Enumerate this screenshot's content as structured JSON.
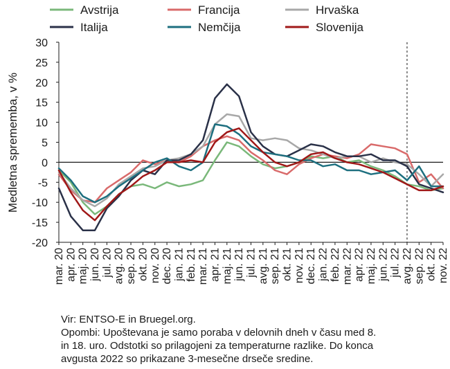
{
  "chart_data": {
    "type": "line",
    "title": "",
    "xlabel": "",
    "ylabel": "Medletna sprememba, v %",
    "ylim": [
      -20,
      30
    ],
    "yticks": [
      "30",
      "25",
      "20",
      "15",
      "10",
      "5",
      "0",
      "-5",
      "-10",
      "-15",
      "-20"
    ],
    "categories": [
      "mar. 20",
      "apr. 20",
      "maj. 20",
      "jun. 20",
      "jul. 20",
      "avg. 20",
      "sep. 20",
      "okt. 20",
      "nov. 20",
      "dec. 20",
      "jan. 21",
      "feb. 21",
      "mar. 21",
      "apr. 21",
      "maj. 21",
      "jun. 21",
      "jul. 21",
      "avg. 21",
      "sep. 21",
      "okt. 21",
      "nov. 21",
      "dec. 21",
      "jan. 22",
      "feb. 22",
      "mar. 22",
      "apr. 22",
      "maj. 22",
      "jun. 22",
      "jul. 22",
      "avg. 22",
      "sep. 22",
      "okt. 22",
      "nov. 22"
    ],
    "tick_labels": [
      "mar. 20",
      "apr. 20",
      "maj. 20",
      "jun. 20",
      "jul. 20",
      "avg. 20",
      "sep. 20",
      "okt. 20",
      "nov. 20",
      "dec. 20",
      "jan. 21",
      "feb. 21",
      "mar. 21",
      "apr. 21",
      "maj. 21",
      "jun. 21",
      "jul. 21",
      "avg. 21",
      "sep. 21",
      "okt. 21",
      "nov. 21",
      "dec. 21",
      "jan. 22",
      "feb. 22",
      "mar. 22",
      "apr. 22",
      "maj. 22",
      "jun. 22",
      "jul. 22",
      "avg. 22",
      "sep. 22",
      "okt. 22",
      "nov. 22"
    ],
    "dashed_vline_at": "avg. 22",
    "legend_position": "top",
    "series": [
      {
        "name": "Avstrija",
        "color": "#7ab87a",
        "values": [
          -2,
          -5,
          -10,
          -13,
          -11,
          -8,
          -6,
          -5.5,
          -6.5,
          -5,
          -6,
          -5.5,
          -4.5,
          0.5,
          5,
          4,
          1.5,
          -0.5,
          -1.5,
          -1,
          0,
          1.5,
          1,
          1.5,
          0,
          0.5,
          -1,
          -2,
          -3.5,
          -5.5,
          -6,
          -7,
          -6.5
        ]
      },
      {
        "name": "Francija",
        "color": "#d96a6a",
        "values": [
          -3,
          -7,
          -9.5,
          -10,
          -6.5,
          -4.5,
          -2.5,
          0.5,
          -0.5,
          0.5,
          0,
          1.5,
          4,
          5.5,
          6.5,
          5.5,
          2.5,
          0.5,
          -2,
          -3,
          -0.5,
          1,
          2,
          1.5,
          1,
          2,
          4.5,
          4,
          3.5,
          2,
          -5,
          -3,
          -6.5
        ]
      },
      {
        "name": "Hrvaška",
        "color": "#a8a8a8",
        "values": [
          -2.5,
          -6.5,
          -9.5,
          -11,
          -9,
          -5.5,
          -3.5,
          -1.5,
          -1,
          0.5,
          1,
          2,
          4,
          9.5,
          12,
          11.5,
          6,
          5.5,
          6,
          5.5,
          3.5,
          3,
          2,
          1,
          1.5,
          1.5,
          0,
          1,
          0,
          -0.5,
          -3,
          -6,
          -3
        ]
      },
      {
        "name": "Italija",
        "color": "#2a3148",
        "values": [
          -6.5,
          -13.5,
          -17,
          -17,
          -11.5,
          -8.5,
          -4.5,
          -2,
          -3,
          0.5,
          0.5,
          2,
          5.5,
          16,
          19.5,
          16.5,
          7.5,
          4,
          2,
          1.5,
          3,
          4.5,
          4,
          2.5,
          1.5,
          1.5,
          2,
          0.5,
          0.5,
          -1,
          -5.5,
          -6.5,
          -7.5
        ]
      },
      {
        "name": "Nemčija",
        "color": "#1d6f7f",
        "values": [
          -1.5,
          -4.5,
          -8.5,
          -10,
          -8.5,
          -6,
          -4,
          -2,
          0,
          1,
          -1,
          -2,
          0,
          9.5,
          9,
          7,
          4,
          2.5,
          2,
          1.5,
          0.5,
          0.5,
          -1,
          -0.5,
          -2,
          -2,
          -3,
          -2.5,
          -2,
          -4.5,
          -1,
          -6,
          -6
        ]
      },
      {
        "name": "Slovenija",
        "color": "#a01818",
        "values": [
          -2,
          -7.5,
          -12,
          -14.5,
          -11,
          -8,
          -6,
          -3.5,
          -2,
          0,
          0,
          0.5,
          0,
          5,
          7.5,
          8.5,
          5.5,
          2.5,
          0,
          -1,
          0,
          2,
          2.5,
          1,
          0,
          -0.5,
          -1.5,
          -2.5,
          -4,
          -5.5,
          -7,
          -7,
          -6
        ]
      }
    ]
  },
  "notes": {
    "source": "Vir: ENTSO-E in Bruegel.org.",
    "line1": "Opombi: Upoštevana je samo poraba v delovnih dneh v času med 8.",
    "line2": "in 18. uro. Odstotki so prilagojeni za temperaturne razlike. Do konca",
    "line3": "avgusta 2022 so prikazane 3-mesečne drseče sredine."
  }
}
